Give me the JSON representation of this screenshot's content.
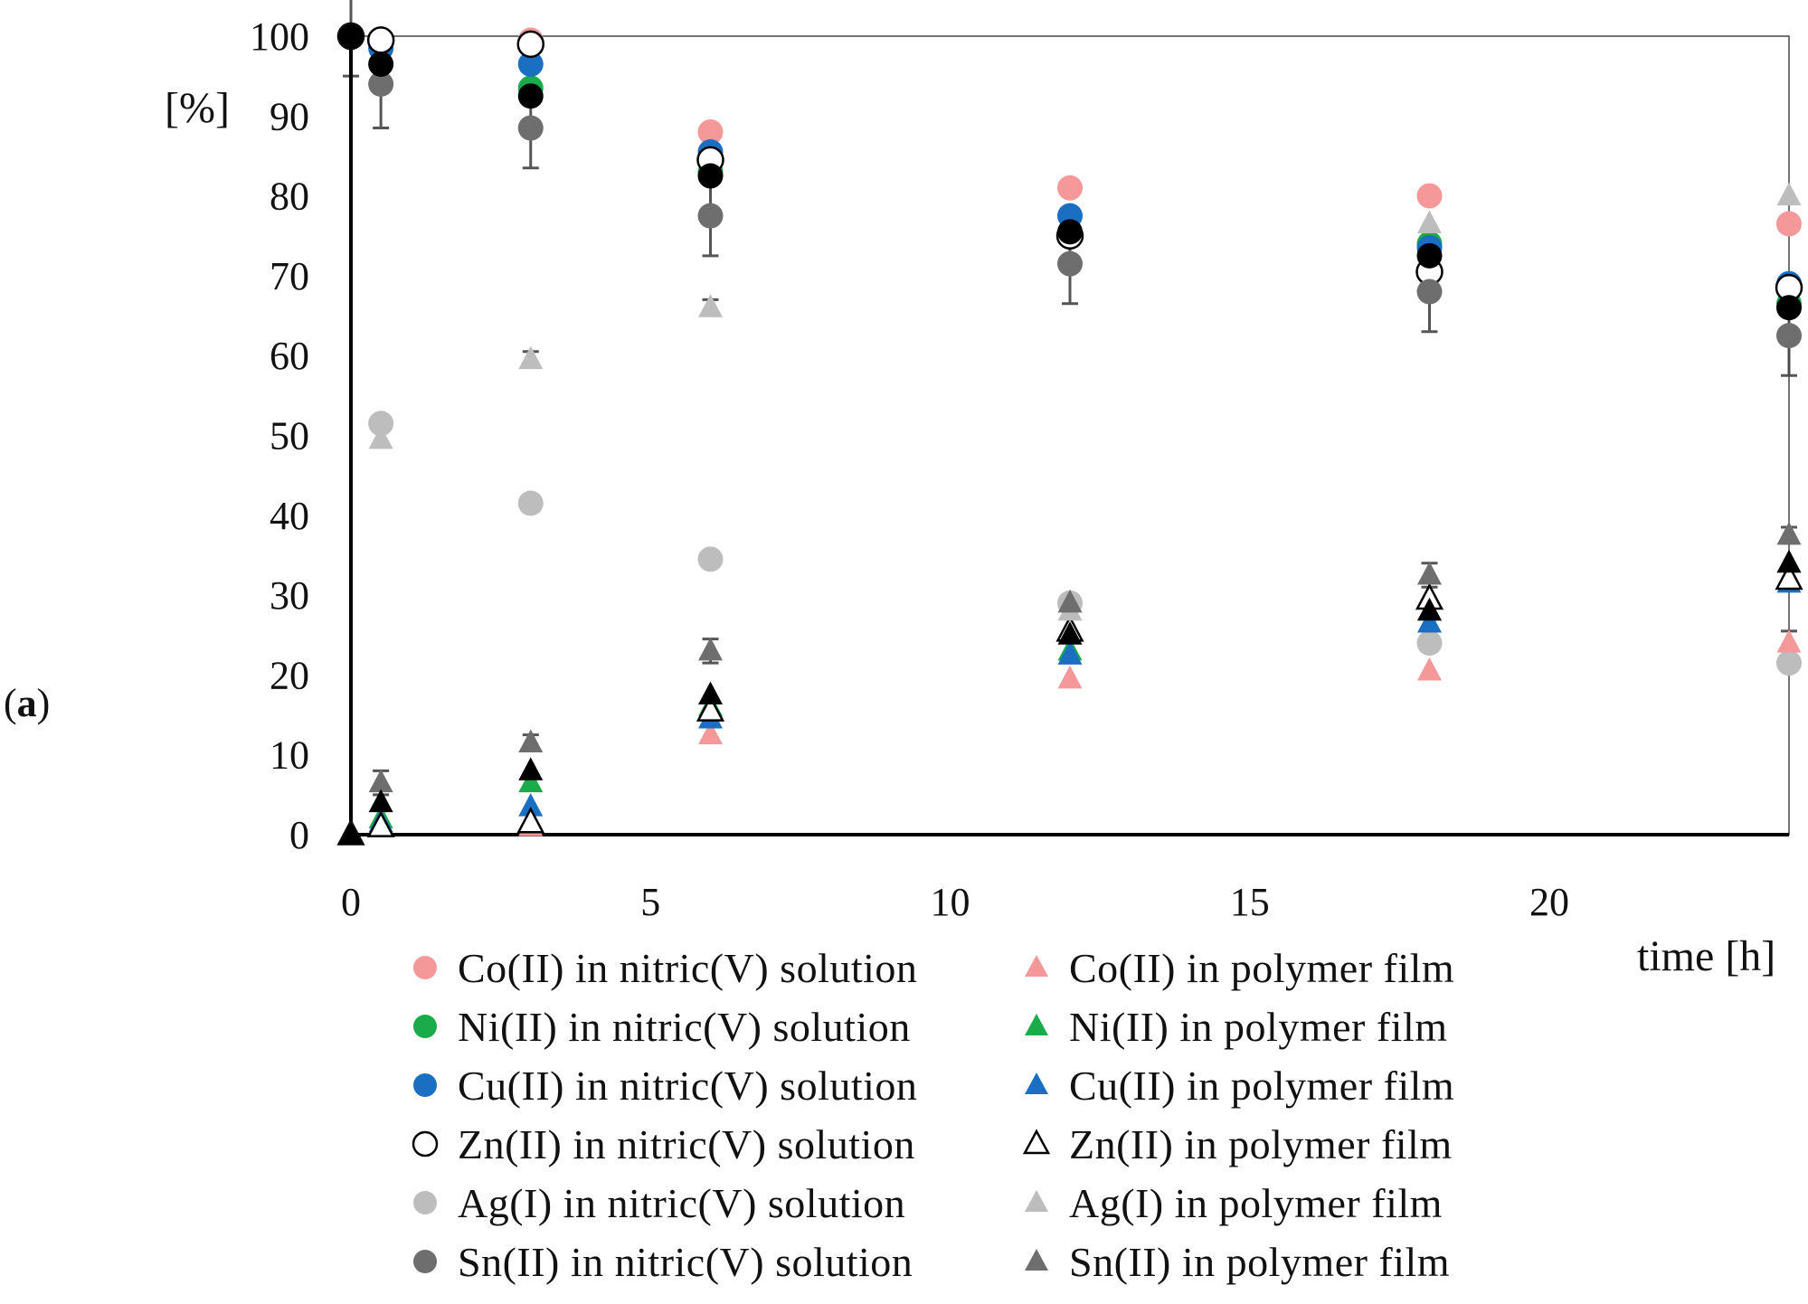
{
  "panel_label": "a",
  "chart_data": {
    "type": "scatter",
    "title": "",
    "xlabel": "time [h]",
    "ylabel": "[%]",
    "xlim": [
      0,
      24
    ],
    "ylim": [
      0,
      100
    ],
    "xticks": [
      0,
      5,
      10,
      15,
      20
    ],
    "yticks": [
      0,
      10,
      20,
      30,
      40,
      50,
      60,
      70,
      80,
      90,
      100
    ],
    "grid": false,
    "legend_position": "bottom",
    "series": [
      {
        "name": "Co(II) in nitric(V) solution",
        "marker": "circle",
        "color": "#f4989a",
        "fill": "#f4989a",
        "x": [
          0,
          0.5,
          3,
          6,
          12,
          18,
          24
        ],
        "y": [
          100,
          99.5,
          99.5,
          88,
          81,
          80,
          76.5
        ],
        "err": [
          0,
          0,
          0,
          0,
          0,
          0,
          0
        ]
      },
      {
        "name": "Ni(II) in nitric(V) solution",
        "marker": "circle",
        "color": "#1aab4b",
        "fill": "#1aab4b",
        "x": [
          0,
          0.5,
          3,
          6,
          12,
          18,
          24
        ],
        "y": [
          100,
          99.5,
          93.5,
          83,
          75,
          74,
          66.5
        ],
        "err": [
          0,
          0,
          0,
          0,
          0,
          0,
          0
        ]
      },
      {
        "name": "Cu(II) in nitric(V) solution",
        "marker": "circle",
        "color": "#1a6fc2",
        "fill": "#1a6fc2",
        "x": [
          0,
          0.5,
          3,
          6,
          12,
          18,
          24
        ],
        "y": [
          100,
          98.5,
          96.5,
          85.5,
          77.5,
          73.5,
          69
        ],
        "err": [
          0,
          0,
          0,
          0,
          0,
          0,
          0
        ]
      },
      {
        "name": "Zn(II) in nitric(V) solution",
        "marker": "circle",
        "color": "#000000",
        "fill": "#ffffff",
        "x": [
          0,
          0.5,
          3,
          6,
          12,
          18,
          24
        ],
        "y": [
          100,
          99.5,
          99,
          84.5,
          75,
          70.5,
          68.5
        ],
        "err": [
          0,
          0,
          0,
          0,
          0,
          0,
          0
        ]
      },
      {
        "name": "Ag(I) in nitric(V) solution",
        "marker": "circle",
        "color": "#bdbdbd",
        "fill": "#bdbdbd",
        "x": [
          0,
          0.5,
          3,
          6,
          12,
          18,
          24
        ],
        "y": [
          100,
          51.5,
          41.5,
          34.5,
          29,
          24,
          21.5
        ],
        "err": [
          0,
          0,
          0,
          0,
          0,
          0,
          0
        ]
      },
      {
        "name": "Sn(II) in nitric(V) solution",
        "marker": "circle",
        "color": "#6e6e6e",
        "fill": "#6e6e6e",
        "x": [
          0,
          0.5,
          3,
          6,
          12,
          18,
          24
        ],
        "y": [
          100,
          94,
          88.5,
          77.5,
          71.5,
          68,
          62.5
        ],
        "err": [
          5,
          5.5,
          5,
          5,
          5,
          5,
          5
        ]
      },
      {
        "name": "Co(II) in polymer film",
        "marker": "triangle",
        "color": "#f4989a",
        "fill": "#f4989a",
        "x": [
          0,
          0.5,
          3,
          6,
          12,
          18,
          24
        ],
        "y": [
          0,
          1,
          1,
          12.5,
          19.5,
          20.5,
          24
        ],
        "err": [
          0,
          0,
          0,
          0,
          0,
          0,
          1.5
        ]
      },
      {
        "name": "Ni(II) in polymer film",
        "marker": "triangle",
        "color": "#1aab4b",
        "fill": "#1aab4b",
        "x": [
          0,
          0.5,
          3,
          6,
          12,
          18,
          24
        ],
        "y": [
          0,
          2,
          6.5,
          16,
          23,
          28,
          34
        ],
        "err": [
          0,
          0,
          0,
          0,
          0,
          0,
          0
        ]
      },
      {
        "name": "Cu(II) in polymer film",
        "marker": "triangle",
        "color": "#1a6fc2",
        "fill": "#1a6fc2",
        "x": [
          0,
          0.5,
          3,
          6,
          12,
          18,
          24
        ],
        "y": [
          0,
          1.5,
          3.5,
          14.5,
          22.5,
          26.5,
          31.5
        ],
        "err": [
          0,
          0,
          0,
          0,
          0,
          0,
          0
        ]
      },
      {
        "name": "Zn(II) in polymer film",
        "marker": "triangle",
        "color": "#000000",
        "fill": "#ffffff",
        "x": [
          0,
          0.5,
          3,
          6,
          12,
          18,
          24
        ],
        "y": [
          0,
          1,
          1.5,
          15.5,
          25.5,
          29.5,
          32
        ],
        "err": [
          0,
          0,
          0,
          0,
          0,
          0,
          0
        ]
      },
      {
        "name": "Ag(I) in polymer film",
        "marker": "triangle",
        "color": "#bdbdbd",
        "fill": "#bdbdbd",
        "x": [
          0,
          0.5,
          3,
          6,
          12,
          18,
          24
        ],
        "y": [
          0,
          49.5,
          59.5,
          66,
          28,
          76.5,
          80
        ],
        "err": [
          0,
          0,
          1,
          1,
          0,
          0,
          0
        ]
      },
      {
        "name": "Sn(II) in polymer film",
        "marker": "triangle",
        "color": "#6e6e6e",
        "fill": "#6e6e6e",
        "x": [
          0,
          0.5,
          3,
          6,
          12,
          18,
          24
        ],
        "y": [
          0,
          6.5,
          11.5,
          23,
          29,
          32.5,
          37.5
        ],
        "err": [
          0,
          1.5,
          1,
          1.5,
          1,
          1.5,
          1
        ]
      },
      {
        "name": "",
        "marker": "circle",
        "color": "#000000",
        "fill": "#000000",
        "in_legend": false,
        "x": [
          0,
          0.5,
          3,
          6,
          12,
          18,
          24
        ],
        "y": [
          100,
          96.5,
          92.5,
          82.5,
          75.5,
          72.5,
          66
        ],
        "err": [
          0,
          0,
          0,
          0,
          0,
          0,
          0
        ]
      },
      {
        "name": "",
        "marker": "triangle",
        "color": "#000000",
        "fill": "#000000",
        "in_legend": false,
        "x": [
          0,
          0.5,
          3,
          6,
          12,
          18,
          24
        ],
        "y": [
          0,
          4,
          8,
          17.5,
          25,
          28,
          34
        ],
        "err": [
          0,
          0,
          0,
          0,
          0,
          0,
          0
        ]
      }
    ]
  }
}
